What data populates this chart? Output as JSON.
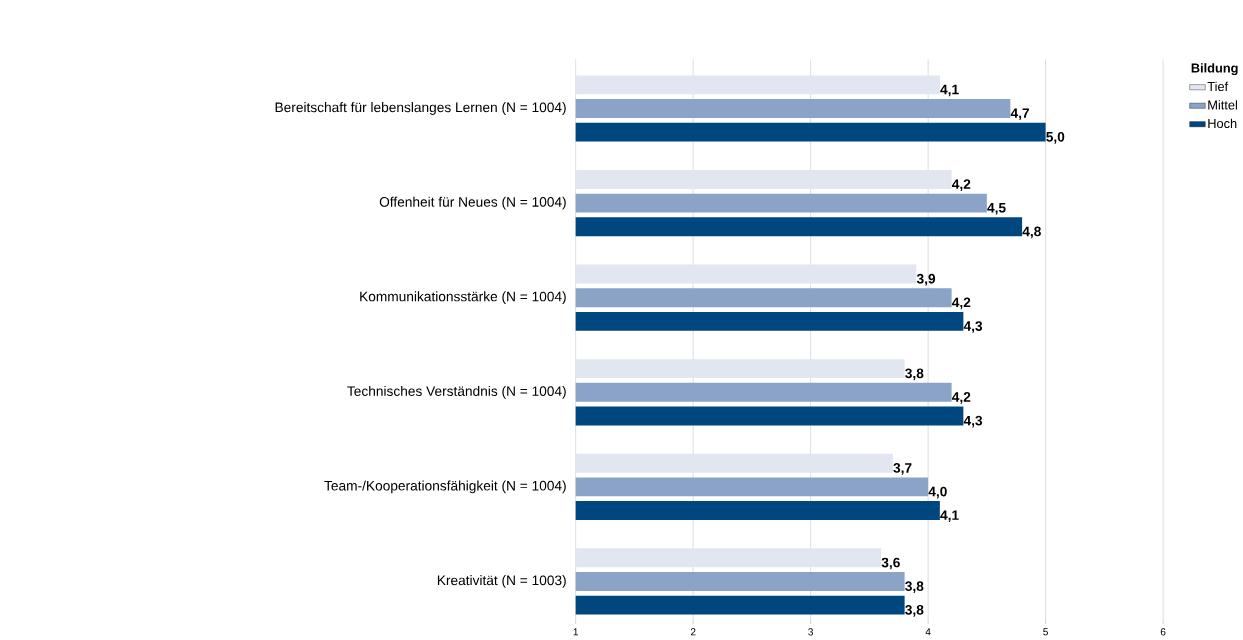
{
  "chart_data": {
    "type": "bar",
    "orientation": "horizontal",
    "categories": [
      "Bereitschaft für lebenslanges Lernen (N = 1004)",
      "Offenheit für Neues (N = 1004)",
      "Kommunikationsstärke (N = 1004)",
      "Technisches Verständnis (N = 1004)",
      "Team-/Kooperationsfähigkeit (N = 1004)",
      "Kreativität (N = 1003)"
    ],
    "series": [
      {
        "name": "Tief",
        "color": "#e1e6f0",
        "values": [
          4.1,
          4.2,
          3.9,
          3.8,
          3.7,
          3.6
        ],
        "value_labels": [
          "4,1",
          "4,2",
          "3,9",
          "3,8",
          "3,7",
          "3,6"
        ]
      },
      {
        "name": "Mittel",
        "color": "#8aa3c7",
        "values": [
          4.7,
          4.5,
          4.2,
          4.2,
          4.0,
          3.8
        ],
        "value_labels": [
          "4,7",
          "4,5",
          "4,2",
          "4,2",
          "4,0",
          "3,8"
        ]
      },
      {
        "name": "Hoch",
        "color": "#00467f",
        "values": [
          5.0,
          4.8,
          4.3,
          4.3,
          4.1,
          3.8
        ],
        "value_labels": [
          "5,0",
          "4,8",
          "4,3",
          "4,3",
          "4,1",
          "3,8"
        ]
      }
    ],
    "xlim": [
      1,
      6
    ],
    "xticks": [
      1,
      2,
      3,
      4,
      5,
      6
    ],
    "grid": "x",
    "legend": "top right",
    "legend_title": "Bildung"
  }
}
